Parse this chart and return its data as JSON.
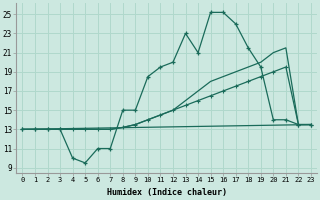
{
  "xlabel": "Humidex (Indice chaleur)",
  "bg_color": "#cce8e0",
  "grid_color": "#b0d8cc",
  "line_color": "#1a6b5a",
  "xlim": [
    -0.5,
    23.5
  ],
  "ylim": [
    8.5,
    26.2
  ],
  "xticks": [
    0,
    1,
    2,
    3,
    4,
    5,
    6,
    7,
    8,
    9,
    10,
    11,
    12,
    13,
    14,
    15,
    16,
    17,
    18,
    19,
    20,
    21,
    22,
    23
  ],
  "yticks": [
    9,
    11,
    13,
    15,
    17,
    19,
    21,
    23,
    25
  ],
  "series": [
    {
      "x": [
        0,
        1,
        2,
        3,
        4,
        5,
        6,
        7,
        8,
        9,
        10,
        11,
        12,
        13,
        14,
        15,
        16,
        17,
        18,
        19,
        20,
        21,
        22,
        23
      ],
      "y": [
        13,
        13,
        13,
        13,
        10,
        9.5,
        11,
        11,
        15,
        15,
        18.5,
        19.5,
        20,
        23,
        21,
        25.2,
        25.2,
        24,
        21.5,
        19.5,
        14,
        14,
        13.5,
        13.5
      ],
      "marker": true
    },
    {
      "x": [
        0,
        1,
        2,
        3,
        4,
        5,
        6,
        7,
        8,
        9,
        10,
        11,
        12,
        13,
        14,
        15,
        16,
        17,
        18,
        19,
        20,
        21,
        22,
        23
      ],
      "y": [
        13,
        13,
        13,
        13,
        13,
        13,
        13,
        13,
        13.2,
        13.5,
        14,
        14.5,
        15,
        16,
        17,
        18,
        18.5,
        19,
        19.5,
        20,
        21,
        21.5,
        13.5,
        13.5
      ],
      "marker": false
    },
    {
      "x": [
        0,
        23
      ],
      "y": [
        13,
        13.5
      ],
      "marker": false
    },
    {
      "x": [
        0,
        1,
        2,
        3,
        4,
        5,
        6,
        7,
        8,
        9,
        10,
        11,
        12,
        13,
        14,
        15,
        16,
        17,
        18,
        19,
        20,
        21,
        22,
        23
      ],
      "y": [
        13,
        13,
        13,
        13,
        13,
        13,
        13,
        13,
        13.2,
        13.5,
        14,
        14.5,
        15,
        15.5,
        16,
        16.5,
        17,
        17.5,
        18,
        18.5,
        19,
        19.5,
        13.5,
        13.5
      ],
      "marker": true
    }
  ]
}
